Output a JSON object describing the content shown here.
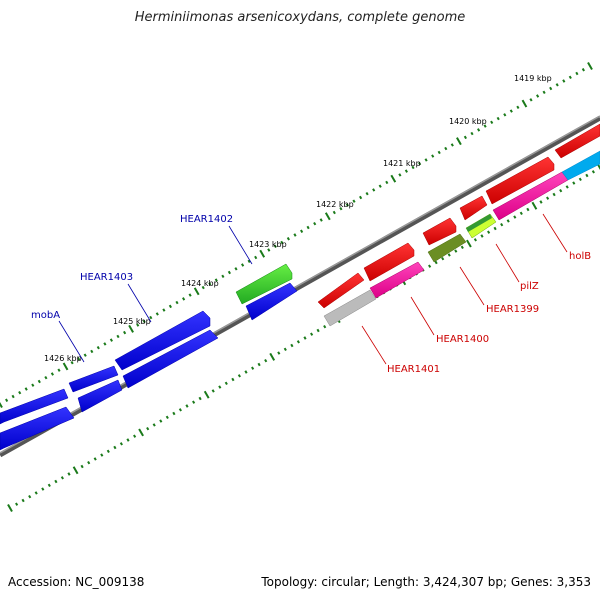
{
  "title": "Herminiimonas arsenicoxydans, complete genome",
  "accession": "Accession: NC_009138",
  "topology": "Topology: circular; Length: 3,424,307 bp; Genes: 3,353",
  "kbp_labels": [
    "1419 kbp",
    "1420 kbp",
    "1421 kbp",
    "1422 kbp",
    "1423 kbp",
    "1424 kbp",
    "1425 kbp",
    "1426 kbp"
  ],
  "genes": {
    "mobA": "mobA",
    "HEAR1403": "HEAR1403",
    "HEAR1402": "HEAR1402",
    "HEAR1401": "HEAR1401",
    "HEAR1400": "HEAR1400",
    "HEAR1399": "HEAR1399",
    "pilZ": "pilZ",
    "holB": "holB"
  },
  "colors": {
    "label_blue": "#0000aa",
    "label_red": "#cc0000",
    "tick_green": "#1a7a1a",
    "backbone_gray": "#777777",
    "gene_blue": "#0000ee",
    "gene_green": "#33cc33",
    "gene_red": "#ee0000",
    "gene_pink": "#ee1199",
    "gene_gray": "#bbbbbb",
    "gene_olive": "#6b8e23",
    "gene_lime": "#ccff33",
    "gene_cyan": "#00aaee"
  }
}
